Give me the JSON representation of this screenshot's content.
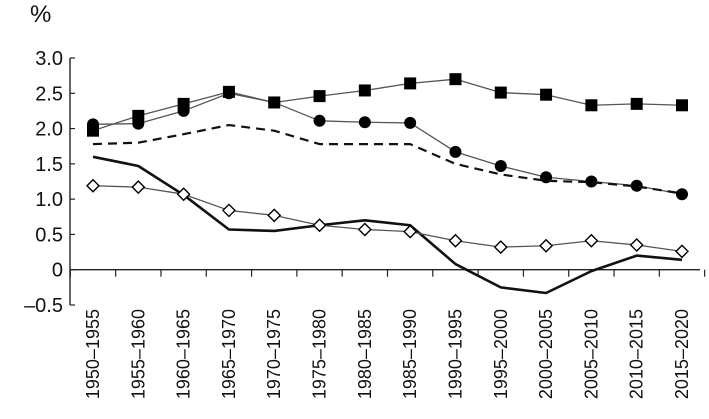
{
  "chart_data": {
    "type": "line",
    "title": "",
    "xlabel": "",
    "ylabel": "%",
    "ylim": [
      -0.5,
      3.0
    ],
    "yticks": [
      "3.0",
      "2.5",
      "2.0",
      "1.5",
      "1.0",
      "0.5",
      "0",
      "–0.5"
    ],
    "ytick_values": [
      3.0,
      2.5,
      2.0,
      1.5,
      1.0,
      0.5,
      0,
      -0.5
    ],
    "categories": [
      "1950–1955",
      "1955–1960",
      "1960–1965",
      "1965–1970",
      "1970–1975",
      "1975–1980",
      "1980–1985",
      "1985–1990",
      "1990–1995",
      "1995–2000",
      "2000–2005",
      "2005–2010",
      "2010–2015",
      "2015–2020"
    ],
    "grid": false,
    "legend": "none",
    "series": [
      {
        "marker": "square",
        "line": "solid-thin",
        "color": "#555555",
        "values": [
          1.97,
          2.18,
          2.35,
          2.52,
          2.37,
          2.46,
          2.54,
          2.64,
          2.7,
          2.51,
          2.48,
          2.33,
          2.35,
          2.33
        ]
      },
      {
        "marker": "circle",
        "line": "solid-thin",
        "color": "#555555",
        "values": [
          2.06,
          2.07,
          2.25,
          2.5,
          2.37,
          2.11,
          2.09,
          2.08,
          1.67,
          1.47,
          1.31,
          1.25,
          1.19,
          1.07
        ]
      },
      {
        "marker": "none",
        "line": "dashed",
        "color": "#111111",
        "values": [
          1.78,
          1.8,
          1.92,
          2.05,
          1.97,
          1.78,
          1.78,
          1.78,
          1.5,
          1.35,
          1.26,
          1.24,
          1.18,
          1.08
        ]
      },
      {
        "marker": "none",
        "line": "solid-thick",
        "color": "#111111",
        "values": [
          1.6,
          1.47,
          1.06,
          0.57,
          0.55,
          0.63,
          0.7,
          0.63,
          0.08,
          -0.25,
          -0.33,
          -0.02,
          0.2,
          0.14
        ]
      },
      {
        "marker": "diamond",
        "line": "solid-thin",
        "color": "#555555",
        "values": [
          1.19,
          1.17,
          1.07,
          0.84,
          0.77,
          0.63,
          0.57,
          0.54,
          0.41,
          0.32,
          0.34,
          0.41,
          0.35,
          0.26
        ]
      }
    ]
  }
}
